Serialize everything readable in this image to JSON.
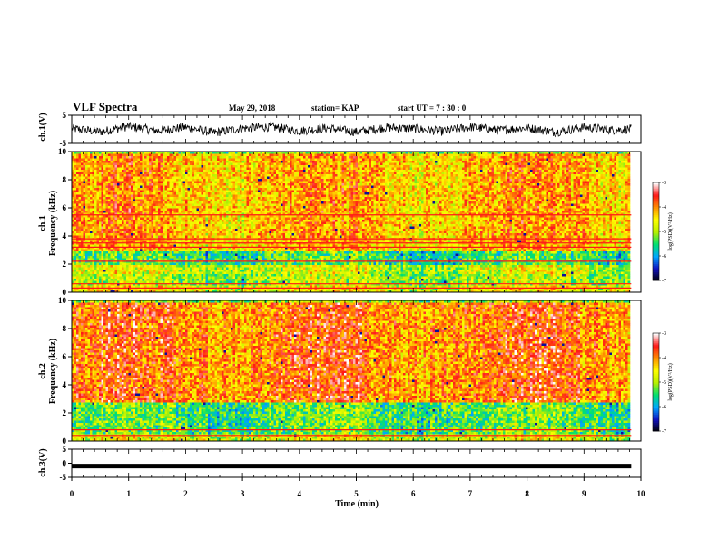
{
  "header": {
    "title": "VLF Spectra",
    "date": "May 29, 2018",
    "station": "station= KAP",
    "start_ut": "start  UT  =   7 : 30 : 0"
  },
  "colors": {
    "waveform": "#000000",
    "colormap": [
      "#000000",
      "#1010c0",
      "#00a8ff",
      "#00e070",
      "#b8f000",
      "#ffff00",
      "#ff9000",
      "#ff1818",
      "#ffffff"
    ]
  },
  "chart_data": [
    {
      "type": "line",
      "name": "ch1-waveform",
      "ylabel": "ch.1(V)",
      "ylim": [
        -5,
        5
      ],
      "yticks": [
        "5",
        "-5"
      ],
      "xlim": [
        0,
        10
      ],
      "description_level": "noisy oscillation around 0 V, amplitude about ±2.5 V",
      "x": [
        0,
        0.5,
        1,
        1.5,
        2,
        2.5,
        3,
        3.5,
        4,
        4.5,
        5,
        5.5,
        6,
        6.5,
        7,
        7.5,
        8,
        8.5,
        9,
        9.5,
        9.83
      ],
      "y": [
        0.5,
        -1.5,
        1.8,
        -0.8,
        1.2,
        -2,
        0.6,
        1.5,
        -1,
        0.8,
        -1.6,
        1.1,
        0.4,
        -1.2,
        1.4,
        -0.6,
        0.9,
        -1.7,
        1.3,
        -0.4,
        0.2
      ]
    },
    {
      "type": "heatmap",
      "name": "ch1-spectrogram",
      "ylabel_line1": "ch.1",
      "ylabel_line2": "Frequency  (kHz)",
      "ylim": [
        0,
        10
      ],
      "yticks": [
        "0",
        "2",
        "4",
        "6",
        "8",
        "10"
      ],
      "xlim": [
        0,
        10
      ],
      "data_end_min": 9.83,
      "colorbar": {
        "label": "log(PSD)(V²/Hz)",
        "range": [
          -7,
          -3
        ],
        "ticks": [
          "-3",
          "-4",
          "-5",
          "-6",
          "-7"
        ]
      },
      "frequency_bands": [
        {
          "f0": 0,
          "f1": 0.5,
          "level": -4.6
        },
        {
          "f0": 0.5,
          "f1": 1.4,
          "level": -5.0
        },
        {
          "f0": 1.4,
          "f1": 2.0,
          "level": -4.8
        },
        {
          "f0": 2.0,
          "f1": 3.0,
          "level": -5.4
        },
        {
          "f0": 3.0,
          "f1": 3.7,
          "level": -4.3
        },
        {
          "f0": 3.7,
          "f1": 10,
          "level": -4.2
        }
      ],
      "horizontal_lines_khz": [
        0.3,
        0.6,
        2.2,
        3.2,
        3.5,
        3.8,
        5.5
      ]
    },
    {
      "type": "heatmap",
      "name": "ch2-spectrogram",
      "ylabel_line1": "ch.2",
      "ylabel_line2": "Frequency  (kHz)",
      "ylim": [
        0,
        10
      ],
      "yticks": [
        "0",
        "2",
        "4",
        "6",
        "8",
        "10"
      ],
      "xlim": [
        0,
        10
      ],
      "data_end_min": 9.83,
      "colorbar": {
        "label": "log(PSD)(V²/Hz)",
        "range": [
          -7,
          -3
        ],
        "ticks": [
          "-3",
          "-4",
          "-5",
          "-6",
          "-7"
        ]
      },
      "frequency_bands": [
        {
          "f0": 0,
          "f1": 0.6,
          "level": -4.7
        },
        {
          "f0": 0.6,
          "f1": 2.9,
          "level": -5.3
        },
        {
          "f0": 2.9,
          "f1": 10,
          "level": -3.9
        }
      ],
      "horizontal_lines_khz": [
        0.4,
        0.8
      ]
    },
    {
      "type": "line",
      "name": "ch3-waveform",
      "ylabel": "ch.3(V)",
      "ylim": [
        -5,
        5
      ],
      "yticks": [
        "5",
        "0",
        "-5"
      ],
      "xlim": [
        0,
        10
      ],
      "x": [
        0,
        9.83
      ],
      "y": [
        -1,
        -1
      ]
    }
  ],
  "xaxis": {
    "label": "Time  (min)",
    "ticks": [
      "0",
      "1",
      "2",
      "3",
      "4",
      "5",
      "6",
      "7",
      "8",
      "9",
      "10"
    ]
  }
}
